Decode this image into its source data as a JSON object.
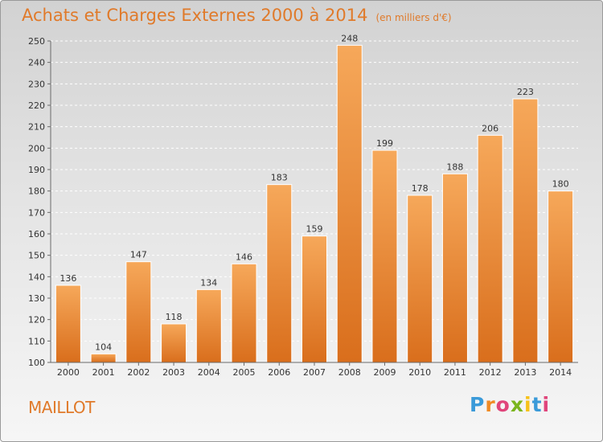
{
  "header": {
    "title": "Achats et Charges Externes 2000 à 2014",
    "unit": "(en milliers d'€)"
  },
  "footer": {
    "commune": "MAILLOT",
    "logo_letters": [
      "P",
      "r",
      "o",
      "x",
      "i",
      "t",
      "i"
    ],
    "logo_colors": [
      "#3a9ad9",
      "#f08a24",
      "#e0457b",
      "#7ab51d",
      "#f7c21a",
      "#3a9ad9",
      "#e0457b"
    ]
  },
  "colors": {
    "title": "#e07a2a",
    "bar_top": "#f6a85a",
    "bar_bottom": "#d96e1c",
    "bar_edge": "#ffffff",
    "grid": "#ffffff",
    "axis": "#6a6a6a"
  },
  "chart_data": {
    "type": "bar",
    "title": "Achats et Charges Externes 2000 à 2014",
    "subtitle": "(en milliers d'€)",
    "categories": [
      "2000",
      "2001",
      "2002",
      "2003",
      "2004",
      "2005",
      "2006",
      "2007",
      "2008",
      "2009",
      "2010",
      "2011",
      "2012",
      "2013",
      "2014"
    ],
    "values": [
      136,
      104,
      147,
      118,
      134,
      146,
      183,
      159,
      248,
      199,
      178,
      188,
      206,
      223,
      180
    ],
    "ylim": [
      100,
      250
    ],
    "yticks": [
      100,
      110,
      120,
      130,
      140,
      150,
      160,
      170,
      180,
      190,
      200,
      210,
      220,
      230,
      240,
      250
    ],
    "grid": true,
    "legend": "none"
  }
}
